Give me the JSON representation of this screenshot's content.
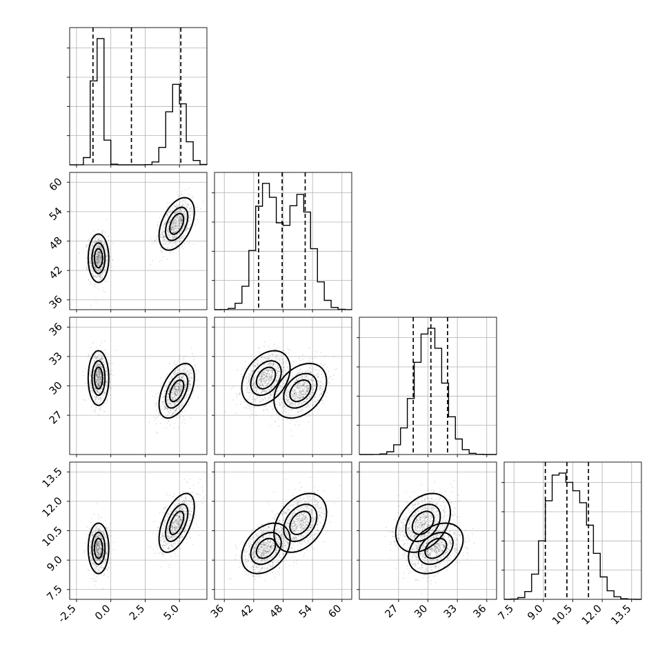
{
  "chart_data": {
    "type": "corner",
    "params": [
      {
        "ticks": [
          "-2.5",
          "0.0",
          "2.5",
          "5.0"
        ],
        "range": [
          -3.0,
          7.0
        ],
        "quantiles": [
          -1.3,
          1.5,
          5.1
        ],
        "modes": [
          {
            "w": 0.5,
            "m": -0.9,
            "s": 0.35
          },
          {
            "w": 0.5,
            "m": 4.8,
            "s": 0.6
          }
        ]
      },
      {
        "ticks": [
          "36",
          "42",
          "48",
          "54",
          "60"
        ],
        "range": [
          34.0,
          62.0
        ],
        "quantiles": [
          43.0,
          47.8,
          52.5
        ],
        "modes": [
          {
            "w": 0.5,
            "m": 44.5,
            "s": 2.3
          },
          {
            "w": 0.5,
            "m": 51.5,
            "s": 2.5
          }
        ]
      },
      {
        "ticks": [
          "27",
          "30",
          "33",
          "36"
        ],
        "range": [
          23.0,
          37.0
        ],
        "quantiles": [
          28.5,
          30.3,
          32.0
        ],
        "modes": [
          {
            "w": 0.5,
            "m": 30.8,
            "s": 1.3
          },
          {
            "w": 0.5,
            "m": 29.5,
            "s": 1.3
          }
        ]
      },
      {
        "ticks": [
          "7.5",
          "9.0",
          "10.5",
          "12.0",
          "13.5"
        ],
        "range": [
          7.0,
          14.0
        ],
        "quantiles": [
          9.1,
          10.2,
          11.3
        ],
        "modes": [
          {
            "w": 0.5,
            "m": 9.6,
            "s": 0.6
          },
          {
            "w": 0.5,
            "m": 10.9,
            "s": 0.7
          }
        ]
      }
    ],
    "clusters": [
      {
        "weight": 0.5,
        "center": [
          -0.9,
          44.5,
          30.8,
          9.6
        ],
        "sd": [
          0.35,
          2.3,
          1.3,
          0.6
        ],
        "rho": [
          [
            1,
            0
          ],
          [
            2,
            0
          ],
          [
            3,
            0
          ]
        ]
      },
      {
        "weight": 0.5,
        "center": [
          4.8,
          51.5,
          29.5,
          10.9
        ],
        "sd": [
          0.6,
          2.5,
          1.3,
          0.7
        ],
        "rho": [
          [
            1,
            0.45
          ],
          [
            2,
            0.5
          ],
          [
            3,
            0.55
          ]
        ]
      }
    ],
    "contour_levels": [
      0.9,
      0.6,
      0.3
    ],
    "grid": true,
    "histogram_bins": 20
  }
}
